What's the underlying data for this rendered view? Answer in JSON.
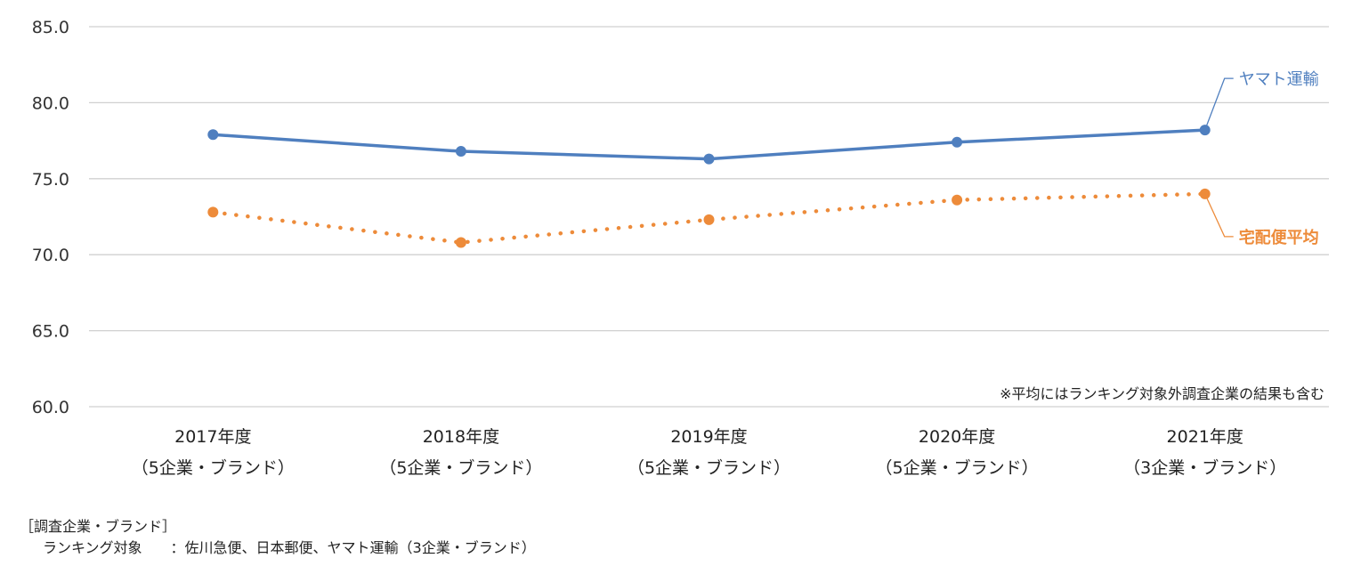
{
  "chart_data": {
    "type": "line",
    "y_ticks": [
      "85.0",
      "80.0",
      "75.0",
      "70.0",
      "65.0",
      "60.0"
    ],
    "ylim": [
      60,
      85
    ],
    "categories": [
      {
        "line1": "2017年度",
        "line2": "（5企業・ブランド）"
      },
      {
        "line1": "2018年度",
        "line2": "（5企業・ブランド）"
      },
      {
        "line1": "2019年度",
        "line2": "（5企業・ブランド）"
      },
      {
        "line1": "2020年度",
        "line2": "（5企業・ブランド）"
      },
      {
        "line1": "2021年度",
        "line2": "（3企業・ブランド）"
      }
    ],
    "series": [
      {
        "name": "ヤマト運輸",
        "values": [
          77.9,
          76.8,
          76.3,
          77.4,
          78.2
        ],
        "color": "#4f7fbf",
        "style": "solid"
      },
      {
        "name": "宅配便平均",
        "values": [
          72.8,
          70.8,
          72.3,
          73.6,
          74.0
        ],
        "color": "#ed8b3a",
        "style": "dotted"
      }
    ],
    "note": "※平均にはランキング対象外調査企業の結果も含む",
    "grid": true
  },
  "footer": {
    "title": "［調査企業・ブランド］",
    "line": "ランキング対象　　：佐川急便、日本郵便、ヤマト運輸（3企業・ブランド）"
  }
}
